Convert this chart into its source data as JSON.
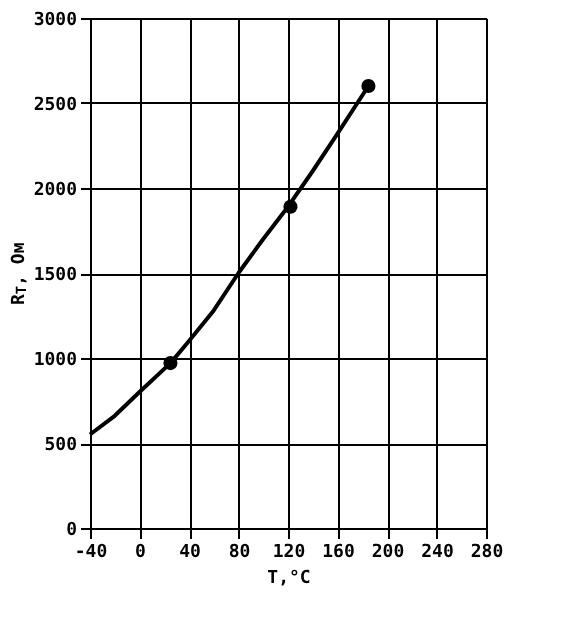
{
  "chart_data": {
    "type": "line",
    "xlabel": "T,°C",
    "ylabel": "R$_{T}$, Ом",
    "series": [
      {
        "color": "#000000",
        "marker": "none",
        "x": [
          -40,
          -20,
          0,
          25,
          40,
          60,
          80,
          100,
          120,
          140,
          160,
          185
        ],
        "values": [
          550,
          660,
          800,
          970,
          1100,
          1280,
          1500,
          1700,
          1890,
          2100,
          2320,
          2600
        ]
      },
      {
        "type": "scatter",
        "color": "#000000",
        "marker": "circle",
        "x": [
          25,
          122,
          185
        ],
        "values": [
          970,
          1890,
          2600
        ]
      }
    ],
    "xlim": [
      -40,
      280
    ],
    "xticks": [
      -40,
      0,
      40,
      80,
      120,
      160,
      200,
      240,
      280
    ],
    "ylim": [
      0,
      3000
    ],
    "yticks": [
      0,
      500,
      1000,
      1500,
      2000,
      2500,
      3000
    ],
    "grid": true
  }
}
